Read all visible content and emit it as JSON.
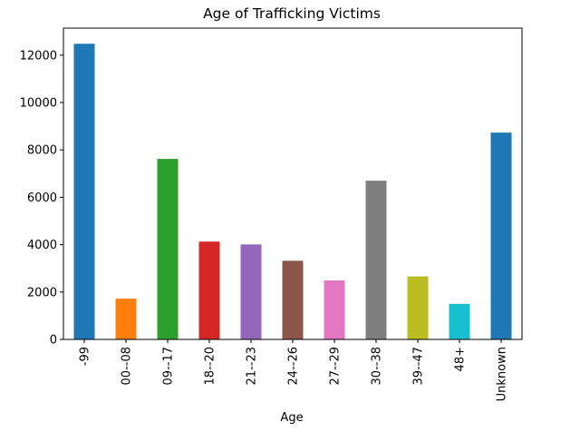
{
  "chart_data": {
    "type": "bar",
    "title": "Age of Trafficking Victims",
    "xlabel": "Age",
    "ylabel": "",
    "categories": [
      "-99",
      "00--08",
      "09--17",
      "18--20",
      "21--23",
      "24--26",
      "27--29",
      "30--38",
      "39--47",
      "48+",
      "Unknown"
    ],
    "values": [
      12480,
      1720,
      7620,
      4130,
      4010,
      3320,
      2490,
      6700,
      2660,
      1500,
      8730
    ],
    "colors": [
      "#1f77b4",
      "#ff7f0e",
      "#2ca02c",
      "#d62728",
      "#9467bd",
      "#8c564b",
      "#e377c2",
      "#7f7f7f",
      "#bcbd22",
      "#17becf",
      "#1f77b4"
    ],
    "ylim": [
      0,
      13140
    ],
    "yticks": [
      0,
      2000,
      4000,
      6000,
      8000,
      10000,
      12000
    ],
    "grid": false,
    "legend": "none"
  }
}
